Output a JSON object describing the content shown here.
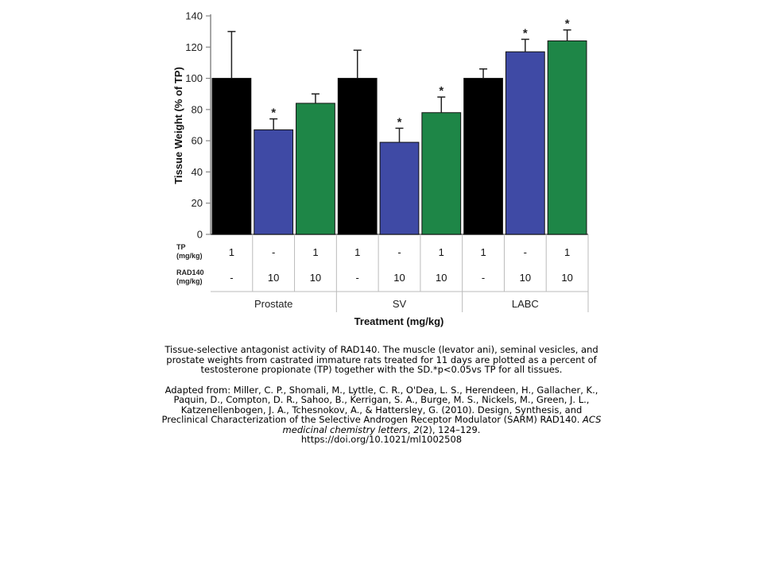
{
  "chart_data": {
    "type": "bar",
    "ylabel": "Tissue Weight (% of TP)",
    "xlabel": "Treatment (mg/kg)",
    "ylim": [
      0,
      140
    ],
    "yticks": [
      0,
      20,
      40,
      60,
      80,
      100,
      120,
      140
    ],
    "grid": false,
    "legend": "none",
    "groups": [
      "Prostate",
      "SV",
      "LABC"
    ],
    "treatment_rows": [
      {
        "label_line1": "TP",
        "label_line2": "(mg/kg)",
        "values": [
          "1",
          "-",
          "1",
          "1",
          "-",
          "1",
          "1",
          "-",
          "1"
        ]
      },
      {
        "label_line1": "RAD140",
        "label_line2": "(mg/kg)",
        "values": [
          "-",
          "10",
          "10",
          "-",
          "10",
          "10",
          "-",
          "10",
          "10"
        ]
      }
    ],
    "bars": [
      {
        "group": "Prostate",
        "value": 100,
        "error": 30,
        "color": "#000000",
        "significant": false
      },
      {
        "group": "Prostate",
        "value": 67,
        "error": 7,
        "color": "#3F4AA5",
        "significant": true
      },
      {
        "group": "Prostate",
        "value": 84,
        "error": 6,
        "color": "#1E8647",
        "significant": false
      },
      {
        "group": "SV",
        "value": 100,
        "error": 18,
        "color": "#000000",
        "significant": false
      },
      {
        "group": "SV",
        "value": 59,
        "error": 9,
        "color": "#3F4AA5",
        "significant": true
      },
      {
        "group": "SV",
        "value": 78,
        "error": 10,
        "color": "#1E8647",
        "significant": true
      },
      {
        "group": "LABC",
        "value": 100,
        "error": 6,
        "color": "#000000",
        "significant": false
      },
      {
        "group": "LABC",
        "value": 117,
        "error": 8,
        "color": "#3F4AA5",
        "significant": true
      },
      {
        "group": "LABC",
        "value": 124,
        "error": 7,
        "color": "#1E8647",
        "significant": true
      }
    ],
    "significance_mark": "*"
  },
  "caption": {
    "paragraph1": "Tissue-selective antagonist activity of RAD140. The muscle (levator ani), seminal vesicles, and prostate weights from castrated immature rats treated for 11 days are plotted as a percent of testosterone propionate (TP) together with the SD.*p<0.05vs TP for all tissues.",
    "citation_prefix": "Adapted from: Miller, C. P., Shomali, M., Lyttle, C. R., O'Dea, L. S., Herendeen, H., Gallacher, K., Paquin, D., Compton, D. R., Sahoo, B., Kerrigan, S. A., Burge, M. S., Nickels, M., Green, J. L., Katzenellenbogen, J. A., Tchesnokov, A., & Hattersley, G. (2010). Design, Synthesis, and Preclinical Characterization of the Selective Androgen Receptor Modulator (SARM) RAD140. ",
    "citation_journal": "ACS medicinal chemistry letters",
    "citation_sep": ", ",
    "citation_volume": "2",
    "citation_issue_pages": "(2), 124–129.",
    "citation_doi": "https://doi.org/10.1021/ml1002508"
  }
}
